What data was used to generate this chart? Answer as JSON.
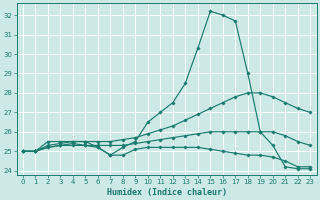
{
  "xlabel": "Humidex (Indice chaleur)",
  "ylabel": "",
  "bg_color": "#cce9e5",
  "line_color": "#1a7a6e",
  "grid_color": "#ffffff",
  "xlim": [
    -0.5,
    23.5
  ],
  "ylim": [
    23.8,
    32.6
  ],
  "yticks": [
    24,
    25,
    26,
    27,
    28,
    29,
    30,
    31,
    32
  ],
  "xticks": [
    0,
    1,
    2,
    3,
    4,
    5,
    6,
    7,
    8,
    9,
    10,
    11,
    12,
    13,
    14,
    15,
    16,
    17,
    18,
    19,
    20,
    21,
    22,
    23
  ],
  "series": [
    {
      "x": [
        0,
        1,
        2,
        3,
        4,
        5,
        6,
        7,
        8,
        9,
        10,
        11,
        12,
        13,
        14,
        15,
        16,
        17,
        18,
        19,
        20,
        21,
        22,
        23
      ],
      "y": [
        25.0,
        25.0,
        25.5,
        25.5,
        25.5,
        25.5,
        25.2,
        24.8,
        25.2,
        25.5,
        26.5,
        27.0,
        27.5,
        28.5,
        30.3,
        32.2,
        32.0,
        31.7,
        29.0,
        26.0,
        25.3,
        24.2,
        24.1,
        24.1
      ]
    },
    {
      "x": [
        0,
        1,
        2,
        3,
        4,
        5,
        6,
        7,
        8,
        9,
        10,
        11,
        12,
        13,
        14,
        15,
        16,
        17,
        18,
        19,
        20,
        21,
        22,
        23
      ],
      "y": [
        25.0,
        25.0,
        25.3,
        25.4,
        25.5,
        25.5,
        25.5,
        25.5,
        25.6,
        25.7,
        25.9,
        26.1,
        26.3,
        26.6,
        26.9,
        27.2,
        27.5,
        27.8,
        28.0,
        28.0,
        27.8,
        27.5,
        27.2,
        27.0
      ]
    },
    {
      "x": [
        0,
        1,
        2,
        3,
        4,
        5,
        6,
        7,
        8,
        9,
        10,
        11,
        12,
        13,
        14,
        15,
        16,
        17,
        18,
        19,
        20,
        21,
        22,
        23
      ],
      "y": [
        25.0,
        25.0,
        25.2,
        25.3,
        25.3,
        25.3,
        25.3,
        25.3,
        25.3,
        25.4,
        25.5,
        25.6,
        25.7,
        25.8,
        25.9,
        26.0,
        26.0,
        26.0,
        26.0,
        26.0,
        26.0,
        25.8,
        25.5,
        25.3
      ]
    },
    {
      "x": [
        0,
        1,
        2,
        3,
        4,
        5,
        6,
        7,
        8,
        9,
        10,
        11,
        12,
        13,
        14,
        15,
        16,
        17,
        18,
        19,
        20,
        21,
        22,
        23
      ],
      "y": [
        25.0,
        25.0,
        25.2,
        25.3,
        25.4,
        25.3,
        25.2,
        24.8,
        24.8,
        25.1,
        25.2,
        25.2,
        25.2,
        25.2,
        25.2,
        25.1,
        25.0,
        24.9,
        24.8,
        24.8,
        24.7,
        24.5,
        24.2,
        24.2
      ]
    }
  ]
}
